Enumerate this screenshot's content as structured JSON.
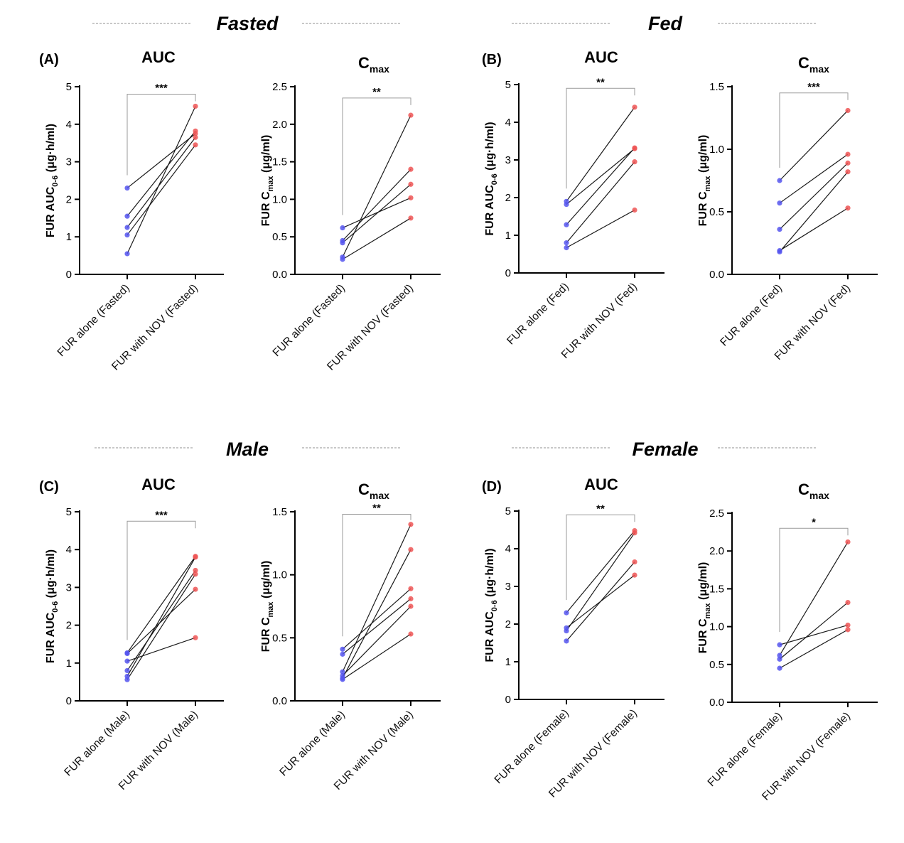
{
  "sections": [
    {
      "id": "fasted",
      "title": "Fasted"
    },
    {
      "id": "fed",
      "title": "Fed"
    },
    {
      "id": "male",
      "title": "Male"
    },
    {
      "id": "female",
      "title": "Female"
    }
  ],
  "colors": {
    "before": "#5555ee",
    "after": "#ee5555",
    "line": "#1a1a1a",
    "bracket": "#9a9a9a"
  },
  "chart_data": [
    {
      "id": "A-auc",
      "type": "paired-line",
      "panel_label": "(A)",
      "title": "AUC",
      "title_sub": "",
      "ylabel": "FUR AUC",
      "ylabel_sub": "0-6",
      "ylabel_unit": " (μg·h/ml)",
      "ylim": [
        0,
        5
      ],
      "yticks": [
        "0",
        "1",
        "2",
        "3",
        "4",
        "5"
      ],
      "categories": [
        "FUR alone (Fasted)",
        "FUR with NOV (Fasted)"
      ],
      "significance": "***",
      "bracket_y": 4.8,
      "pairs": [
        [
          2.3,
          3.75
        ],
        [
          1.55,
          3.82
        ],
        [
          1.25,
          3.65
        ],
        [
          1.05,
          3.45
        ],
        [
          0.55,
          4.48
        ]
      ]
    },
    {
      "id": "A-cmax",
      "type": "paired-line",
      "panel_label": "",
      "title": "C",
      "title_sub": "max",
      "ylabel": "FUR C",
      "ylabel_sub": "max",
      "ylabel_unit": " (μg/ml)",
      "ylim": [
        0,
        2.5
      ],
      "yticks": [
        "0.0",
        "0.5",
        "1.0",
        "1.5",
        "2.0",
        "2.5"
      ],
      "categories": [
        "FUR alone (Fasted)",
        "FUR with NOV (Fasted)"
      ],
      "significance": "**",
      "bracket_y": 2.35,
      "pairs": [
        [
          0.62,
          1.02
        ],
        [
          0.45,
          1.4
        ],
        [
          0.42,
          1.2
        ],
        [
          0.23,
          2.12
        ],
        [
          0.2,
          0.75
        ]
      ]
    },
    {
      "id": "B-auc",
      "type": "paired-line",
      "panel_label": "(B)",
      "title": "AUC",
      "title_sub": "",
      "ylabel": "FUR AUC",
      "ylabel_sub": "0-6",
      "ylabel_unit": " (μg·h/ml)",
      "ylim": [
        0,
        5
      ],
      "yticks": [
        "0",
        "1",
        "2",
        "3",
        "4",
        "5"
      ],
      "categories": [
        "FUR alone (Fed)",
        "FUR with NOV (Fed)"
      ],
      "significance": "**",
      "bracket_y": 4.9,
      "pairs": [
        [
          1.9,
          4.4
        ],
        [
          1.82,
          3.3
        ],
        [
          1.28,
          3.32
        ],
        [
          0.8,
          2.95
        ],
        [
          0.67,
          1.67
        ]
      ]
    },
    {
      "id": "B-cmax",
      "type": "paired-line",
      "panel_label": "",
      "title": "C",
      "title_sub": "max",
      "ylabel": "FUR C",
      "ylabel_sub": "max",
      "ylabel_unit": " (μg/ml)",
      "ylim": [
        0,
        1.5
      ],
      "yticks": [
        "0.0",
        "0.5",
        "1.0",
        "1.5"
      ],
      "categories": [
        "FUR alone (Fed)",
        "FUR with NOV (Fed)"
      ],
      "significance": "***",
      "bracket_y": 1.45,
      "pairs": [
        [
          0.75,
          1.31
        ],
        [
          0.57,
          0.96
        ],
        [
          0.36,
          0.89
        ],
        [
          0.19,
          0.53
        ],
        [
          0.18,
          0.82
        ]
      ]
    },
    {
      "id": "C-auc",
      "type": "paired-line",
      "panel_label": "(C)",
      "title": "AUC",
      "title_sub": "",
      "ylabel": "FUR AUC",
      "ylabel_sub": "0-6",
      "ylabel_unit": " (μg·h/ml)",
      "ylim": [
        0,
        5
      ],
      "yticks": [
        "0",
        "1",
        "2",
        "3",
        "4",
        "5"
      ],
      "categories": [
        "FUR alone (Male)",
        "FUR with NOV (Male)"
      ],
      "significance": "***",
      "bracket_y": 4.75,
      "pairs": [
        [
          1.27,
          3.82
        ],
        [
          1.25,
          2.95
        ],
        [
          1.05,
          1.67
        ],
        [
          0.8,
          3.45
        ],
        [
          0.65,
          3.8
        ],
        [
          0.56,
          3.35
        ]
      ]
    },
    {
      "id": "C-cmax",
      "type": "paired-line",
      "panel_label": "",
      "title": "C",
      "title_sub": "max",
      "ylabel": "FUR C",
      "ylabel_sub": "max",
      "ylabel_unit": " (μg/ml)",
      "ylim": [
        0,
        1.5
      ],
      "yticks": [
        "0.0",
        "0.5",
        "1.0",
        "1.5"
      ],
      "categories": [
        "FUR alone (Male)",
        "FUR with NOV (Male)"
      ],
      "significance": "**",
      "bracket_y": 1.48,
      "pairs": [
        [
          0.41,
          0.89
        ],
        [
          0.37,
          0.81
        ],
        [
          0.23,
          1.4
        ],
        [
          0.2,
          0.75
        ],
        [
          0.18,
          1.2
        ],
        [
          0.17,
          0.53
        ]
      ]
    },
    {
      "id": "D-auc",
      "type": "paired-line",
      "panel_label": "(D)",
      "title": "AUC",
      "title_sub": "",
      "ylabel": "FUR AUC",
      "ylabel_sub": "0-6",
      "ylabel_unit": " (μg·h/ml)",
      "ylim": [
        0,
        5
      ],
      "yticks": [
        "0",
        "1",
        "2",
        "3",
        "4",
        "5"
      ],
      "categories": [
        "FUR alone (Female)",
        "FUR with NOV (Female)"
      ],
      "significance": "**",
      "bracket_y": 4.9,
      "pairs": [
        [
          2.3,
          4.48
        ],
        [
          1.9,
          3.3
        ],
        [
          1.82,
          4.42
        ],
        [
          1.55,
          3.65
        ]
      ]
    },
    {
      "id": "D-cmax",
      "type": "paired-line",
      "panel_label": "",
      "title": "C",
      "title_sub": "max",
      "ylabel": "FUR C",
      "ylabel_sub": "max",
      "ylabel_unit": " (μg/ml)",
      "ylim": [
        0,
        2.5
      ],
      "yticks": [
        "0.0",
        "0.5",
        "1.0",
        "1.5",
        "2.0",
        "2.5"
      ],
      "categories": [
        "FUR alone (Female)",
        "FUR with NOV (Female)"
      ],
      "significance": "*",
      "bracket_y": 2.3,
      "pairs": [
        [
          0.76,
          1.02
        ],
        [
          0.62,
          2.12
        ],
        [
          0.57,
          1.32
        ],
        [
          0.45,
          0.96
        ]
      ]
    }
  ]
}
